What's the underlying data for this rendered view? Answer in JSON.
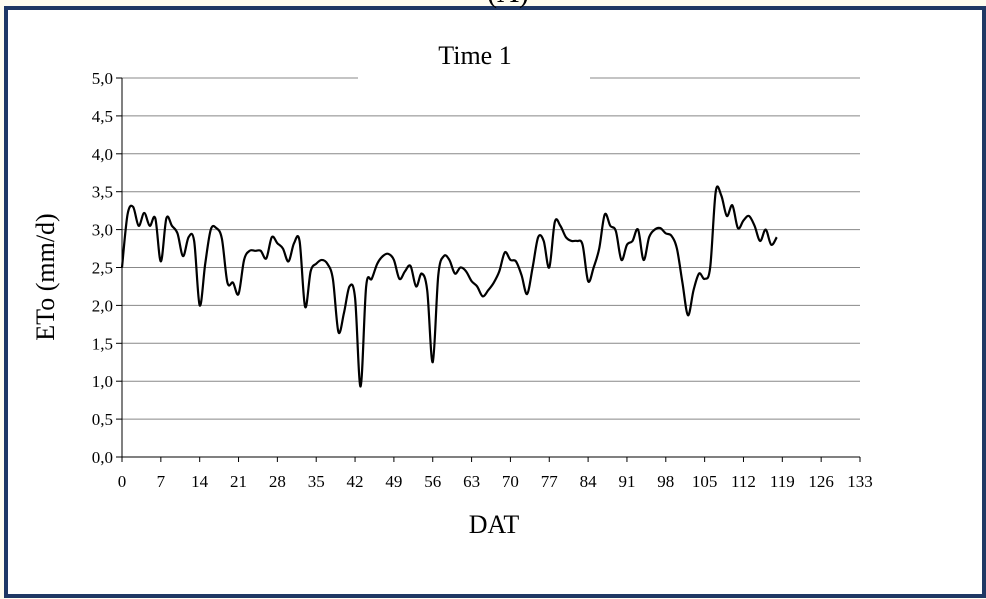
{
  "panel_label": "(A)",
  "chart_data": {
    "type": "line",
    "title": "Time 1",
    "xlabel": "DAT",
    "ylabel": "ETo (mm/d)",
    "xlim": [
      0,
      133
    ],
    "ylim": [
      0,
      5
    ],
    "x_ticks": [
      "0",
      "7",
      "14",
      "21",
      "28",
      "35",
      "42",
      "49",
      "56",
      "63",
      "70",
      "77",
      "84",
      "91",
      "98",
      "105",
      "112",
      "119",
      "126",
      "133"
    ],
    "y_ticks": [
      "0,0",
      "0,5",
      "1,0",
      "1,5",
      "2,0",
      "2,5",
      "3,0",
      "3,5",
      "4,0",
      "4,5",
      "5,0"
    ],
    "grid": true,
    "legend": "none",
    "colors": {
      "line": "#000000",
      "grid": "#888888",
      "frame": "#1f3864"
    },
    "series": [
      {
        "x": [
          0,
          1,
          2,
          3,
          4,
          5,
          6,
          7,
          8,
          9,
          10,
          11,
          12,
          13,
          14,
          15,
          16,
          17,
          18,
          19,
          20,
          21,
          22,
          23,
          24,
          25,
          26,
          27,
          28,
          29,
          30,
          31,
          32,
          33,
          34,
          35,
          36,
          37,
          38,
          39,
          40,
          41,
          42,
          43,
          44,
          45,
          46,
          47,
          48,
          49,
          50,
          51,
          52,
          53,
          54,
          55,
          56,
          57,
          58,
          59,
          60,
          61,
          62,
          63,
          64,
          65,
          66,
          67,
          68,
          69,
          70,
          71,
          72,
          73,
          74,
          75,
          76,
          77,
          78,
          79,
          80,
          81,
          82,
          83,
          84,
          85,
          86,
          87,
          88,
          89,
          90,
          91,
          92,
          93,
          94,
          95,
          96,
          97,
          98,
          99,
          100,
          101,
          102,
          103,
          104,
          105,
          106,
          107,
          108,
          109,
          110,
          111,
          112,
          113,
          114,
          115,
          116,
          117,
          118
        ],
        "y": [
          2.5,
          3.2,
          3.3,
          3.05,
          3.22,
          3.05,
          3.15,
          2.58,
          3.15,
          3.05,
          2.95,
          2.65,
          2.9,
          2.85,
          2.0,
          2.55,
          3.0,
          3.02,
          2.88,
          2.3,
          2.3,
          2.15,
          2.6,
          2.72,
          2.72,
          2.72,
          2.62,
          2.9,
          2.82,
          2.75,
          2.58,
          2.82,
          2.85,
          1.98,
          2.45,
          2.55,
          2.6,
          2.55,
          2.35,
          1.65,
          1.9,
          2.25,
          2.1,
          0.93,
          2.25,
          2.35,
          2.55,
          2.65,
          2.68,
          2.6,
          2.35,
          2.45,
          2.52,
          2.25,
          2.42,
          2.2,
          1.25,
          2.4,
          2.65,
          2.6,
          2.42,
          2.5,
          2.45,
          2.32,
          2.25,
          2.12,
          2.2,
          2.3,
          2.45,
          2.7,
          2.6,
          2.58,
          2.4,
          2.15,
          2.5,
          2.9,
          2.85,
          2.5,
          3.1,
          3.05,
          2.9,
          2.85,
          2.85,
          2.8,
          2.32,
          2.5,
          2.75,
          3.2,
          3.05,
          2.98,
          2.6,
          2.8,
          2.85,
          3.0,
          2.6,
          2.9,
          3.0,
          3.02,
          2.95,
          2.92,
          2.75,
          2.3,
          1.87,
          2.2,
          2.42,
          2.35,
          2.5,
          3.5,
          3.45,
          3.18,
          3.32,
          3.02,
          3.12,
          3.18,
          3.05,
          2.85,
          3.0,
          2.8,
          2.9
        ]
      }
    ]
  }
}
